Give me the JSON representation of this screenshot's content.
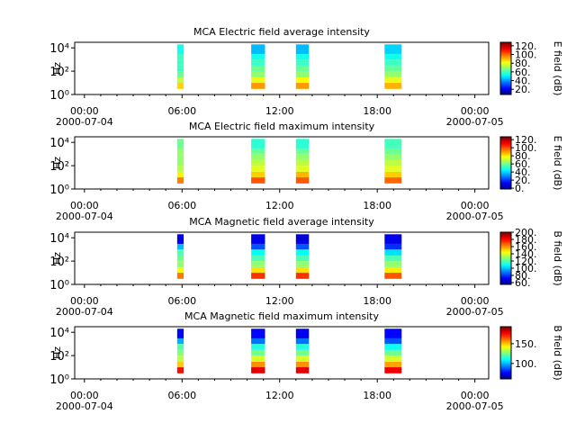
{
  "chart_data": [
    {
      "type": "spectrogram",
      "title": "MCA  Electric field average intensity",
      "ylabel": "Hz",
      "colorbar_label": "E field (dB)",
      "xlim": [
        -0.6,
        24.85
      ],
      "ylim": [
        1,
        30000
      ],
      "yscale": "log",
      "xticks": [
        {
          "value": 0,
          "label": "00:00"
        },
        {
          "value": 6,
          "label": "06:00"
        },
        {
          "value": 12,
          "label": "12:00"
        },
        {
          "value": 18,
          "label": "18:00"
        },
        {
          "value": 24,
          "label": "00:00"
        }
      ],
      "xtick_dates": [
        {
          "value": 0,
          "label": "2000-07-04"
        },
        {
          "value": 24,
          "label": "2000-07-05"
        }
      ],
      "yticks": [
        {
          "value": 1,
          "label": "10⁰"
        },
        {
          "value": 100,
          "label": "10²"
        },
        {
          "value": 10000,
          "label": "10⁴"
        }
      ],
      "clim": [
        8,
        128
      ],
      "cticks": [
        {
          "value": 20,
          "label": "20."
        },
        {
          "value": 40,
          "label": "40."
        },
        {
          "value": 60,
          "label": "60."
        },
        {
          "value": 80,
          "label": "80."
        },
        {
          "value": 100,
          "label": "100."
        },
        {
          "value": 120,
          "label": "120."
        }
      ],
      "freq_bins": [
        3,
        10,
        30,
        100,
        300,
        1000,
        3000,
        20000
      ],
      "intervals": [
        [
          5.7,
          6.1
        ],
        [
          10.25,
          11.1
        ],
        [
          13.0,
          13.8
        ],
        [
          18.45,
          19.5
        ]
      ],
      "values": [
        [
          88,
          75,
          65,
          60,
          60,
          60,
          55
        ],
        [
          95,
          80,
          70,
          65,
          60,
          55,
          45
        ],
        [
          95,
          82,
          70,
          65,
          60,
          55,
          45
        ],
        [
          92,
          80,
          70,
          65,
          60,
          55,
          48
        ]
      ]
    },
    {
      "type": "spectrogram",
      "title": "MCA  Electric field maximum intensity",
      "ylabel": "Hz",
      "colorbar_label": "E field (dB)",
      "xlim": [
        -0.6,
        24.85
      ],
      "ylim": [
        1,
        30000
      ],
      "yscale": "log",
      "xticks": [
        {
          "value": 0,
          "label": "00:00"
        },
        {
          "value": 6,
          "label": "06:00"
        },
        {
          "value": 12,
          "label": "12:00"
        },
        {
          "value": 18,
          "label": "18:00"
        },
        {
          "value": 24,
          "label": "00:00"
        }
      ],
      "xtick_dates": [
        {
          "value": 0,
          "label": "2000-07-04"
        },
        {
          "value": 24,
          "label": "2000-07-05"
        }
      ],
      "yticks": [
        {
          "value": 1,
          "label": "10⁰"
        },
        {
          "value": 100,
          "label": "10²"
        },
        {
          "value": 10000,
          "label": "10⁴"
        }
      ],
      "clim": [
        -2,
        127
      ],
      "cticks": [
        {
          "value": 0,
          "label": "0."
        },
        {
          "value": 20,
          "label": "20."
        },
        {
          "value": 40,
          "label": "40."
        },
        {
          "value": 60,
          "label": "60."
        },
        {
          "value": 80,
          "label": "80."
        },
        {
          "value": 100,
          "label": "100."
        },
        {
          "value": 120,
          "label": "120."
        }
      ],
      "freq_bins": [
        3,
        10,
        30,
        100,
        300,
        1000,
        3000,
        20000
      ],
      "intervals": [
        [
          5.7,
          6.1
        ],
        [
          10.25,
          11.1
        ],
        [
          13.0,
          13.8
        ],
        [
          18.45,
          19.5
        ]
      ],
      "values": [
        [
          95,
          80,
          70,
          65,
          65,
          65,
          60
        ],
        [
          100,
          85,
          75,
          70,
          65,
          60,
          52
        ],
        [
          100,
          88,
          75,
          70,
          65,
          60,
          52
        ],
        [
          98,
          85,
          75,
          70,
          65,
          60,
          55
        ]
      ]
    },
    {
      "type": "spectrogram",
      "title": "MCA  Magnetic field average intensity",
      "ylabel": "Hz",
      "colorbar_label": "B field (dB)",
      "xlim": [
        -0.6,
        24.85
      ],
      "ylim": [
        1,
        30000
      ],
      "yscale": "log",
      "xticks": [
        {
          "value": 0,
          "label": "00:00"
        },
        {
          "value": 6,
          "label": "06:00"
        },
        {
          "value": 12,
          "label": "12:00"
        },
        {
          "value": 18,
          "label": "18:00"
        },
        {
          "value": 24,
          "label": "00:00"
        }
      ],
      "xtick_dates": [
        {
          "value": 0,
          "label": "2000-07-04"
        },
        {
          "value": 24,
          "label": "2000-07-05"
        }
      ],
      "yticks": [
        {
          "value": 1,
          "label": "10⁰"
        },
        {
          "value": 100,
          "label": "10²"
        },
        {
          "value": 10000,
          "label": "10⁴"
        }
      ],
      "clim": [
        55,
        200
      ],
      "cticks": [
        {
          "value": 60,
          "label": "60."
        },
        {
          "value": 80,
          "label": "80."
        },
        {
          "value": 100,
          "label": "100."
        },
        {
          "value": 120,
          "label": "120."
        },
        {
          "value": 140,
          "label": "140."
        },
        {
          "value": 160,
          "label": "160."
        },
        {
          "value": 180,
          "label": "180."
        },
        {
          "value": 200,
          "label": "200."
        }
      ],
      "freq_bins": [
        3,
        10,
        30,
        100,
        300,
        1000,
        3000,
        20000
      ],
      "intervals": [
        [
          5.7,
          6.1
        ],
        [
          10.25,
          11.1
        ],
        [
          13.0,
          13.8
        ],
        [
          18.45,
          19.5
        ]
      ],
      "values": [
        [
          165,
          145,
          130,
          125,
          120,
          100,
          70
        ],
        [
          175,
          150,
          130,
          120,
          110,
          85,
          70
        ],
        [
          175,
          150,
          130,
          120,
          110,
          85,
          68
        ],
        [
          170,
          148,
          130,
          120,
          105,
          80,
          70
        ]
      ]
    },
    {
      "type": "spectrogram",
      "title": "MCA  Magnetic field maximum intensity",
      "ylabel": "Hz",
      "colorbar_label": "B field (dB)",
      "xlim": [
        -0.6,
        24.85
      ],
      "ylim": [
        1,
        30000
      ],
      "yscale": "log",
      "xticks": [
        {
          "value": 0,
          "label": "00:00"
        },
        {
          "value": 6,
          "label": "06:00"
        },
        {
          "value": 12,
          "label": "12:00"
        },
        {
          "value": 18,
          "label": "18:00"
        },
        {
          "value": 24,
          "label": "00:00"
        }
      ],
      "xtick_dates": [
        {
          "value": 0,
          "label": "2000-07-04"
        },
        {
          "value": 24,
          "label": "2000-07-05"
        }
      ],
      "yticks": [
        {
          "value": 1,
          "label": "10⁰"
        },
        {
          "value": 100,
          "label": "10²"
        },
        {
          "value": 10000,
          "label": "10⁴"
        }
      ],
      "clim": [
        61,
        193
      ],
      "cticks": [
        {
          "value": 100,
          "label": "100."
        },
        {
          "value": 150,
          "label": "150."
        }
      ],
      "freq_bins": [
        3,
        10,
        30,
        100,
        300,
        1000,
        3000,
        20000
      ],
      "intervals": [
        [
          5.7,
          6.1
        ],
        [
          10.25,
          11.1
        ],
        [
          13.0,
          13.8
        ],
        [
          18.45,
          19.5
        ]
      ],
      "values": [
        [
          175,
          150,
          135,
          128,
          122,
          100,
          78
        ],
        [
          180,
          158,
          138,
          126,
          115,
          92,
          78
        ],
        [
          180,
          158,
          138,
          126,
          115,
          92,
          75
        ],
        [
          178,
          155,
          138,
          125,
          112,
          88,
          78
        ]
      ]
    }
  ]
}
